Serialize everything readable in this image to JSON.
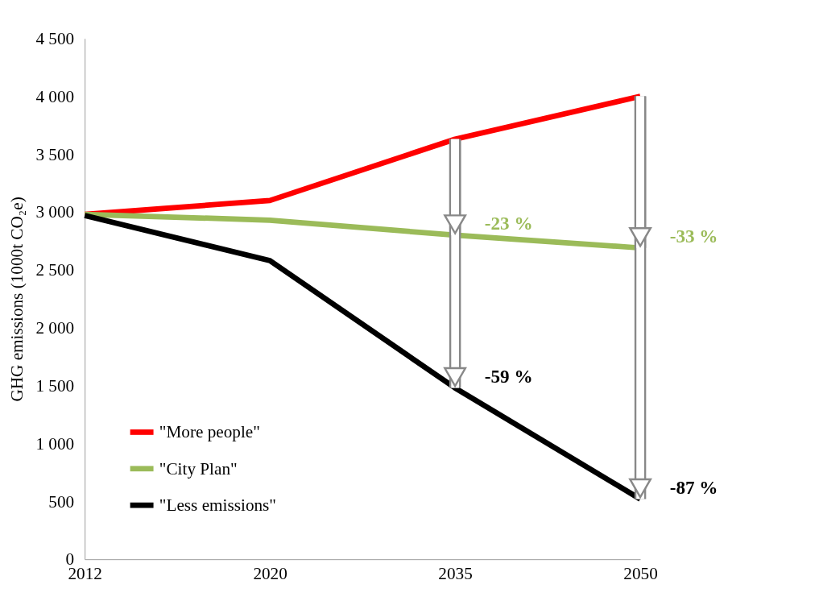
{
  "chart_data": {
    "type": "line",
    "ylabel": "GHG emissions (1000t CO₂e)",
    "categories": [
      "2012",
      "2020",
      "2035",
      "2050"
    ],
    "series": [
      {
        "name": "\"More people\"",
        "color": "#ff0000",
        "values": [
          2980,
          3100,
          3630,
          4000
        ]
      },
      {
        "name": "\"City Plan\"",
        "color": "#9bbb59",
        "values": [
          2980,
          2930,
          2800,
          2690
        ]
      },
      {
        "name": "\"Less emissions\"",
        "color": "#000000",
        "values": [
          2970,
          2580,
          1480,
          520
        ]
      }
    ],
    "ylim": [
      0,
      4500
    ],
    "yticks": [
      0,
      500,
      {
        "value": 1000,
        "label": "1 000"
      },
      {
        "value": 1500,
        "label": "1 500"
      },
      {
        "value": 2000,
        "label": "2 000"
      },
      {
        "value": 2500,
        "label": "2 500"
      },
      {
        "value": 3000,
        "label": "3 000"
      },
      {
        "value": 3500,
        "label": "3 500"
      },
      {
        "value": 4000,
        "label": "4 000"
      },
      {
        "value": 4500,
        "label": "4 500"
      }
    ],
    "annotations": [
      {
        "text": "-23 %",
        "x": "2035",
        "y": 2800
      },
      {
        "text": "-59 %",
        "x": "2035",
        "y": 1480
      },
      {
        "text": "-33 %",
        "x": "2050",
        "y": 2690
      },
      {
        "text": "-87 %",
        "x": "2050",
        "y": 520
      }
    ],
    "legend": "bottom left",
    "grid": false,
    "marker": "none",
    "line_style": "solid"
  }
}
